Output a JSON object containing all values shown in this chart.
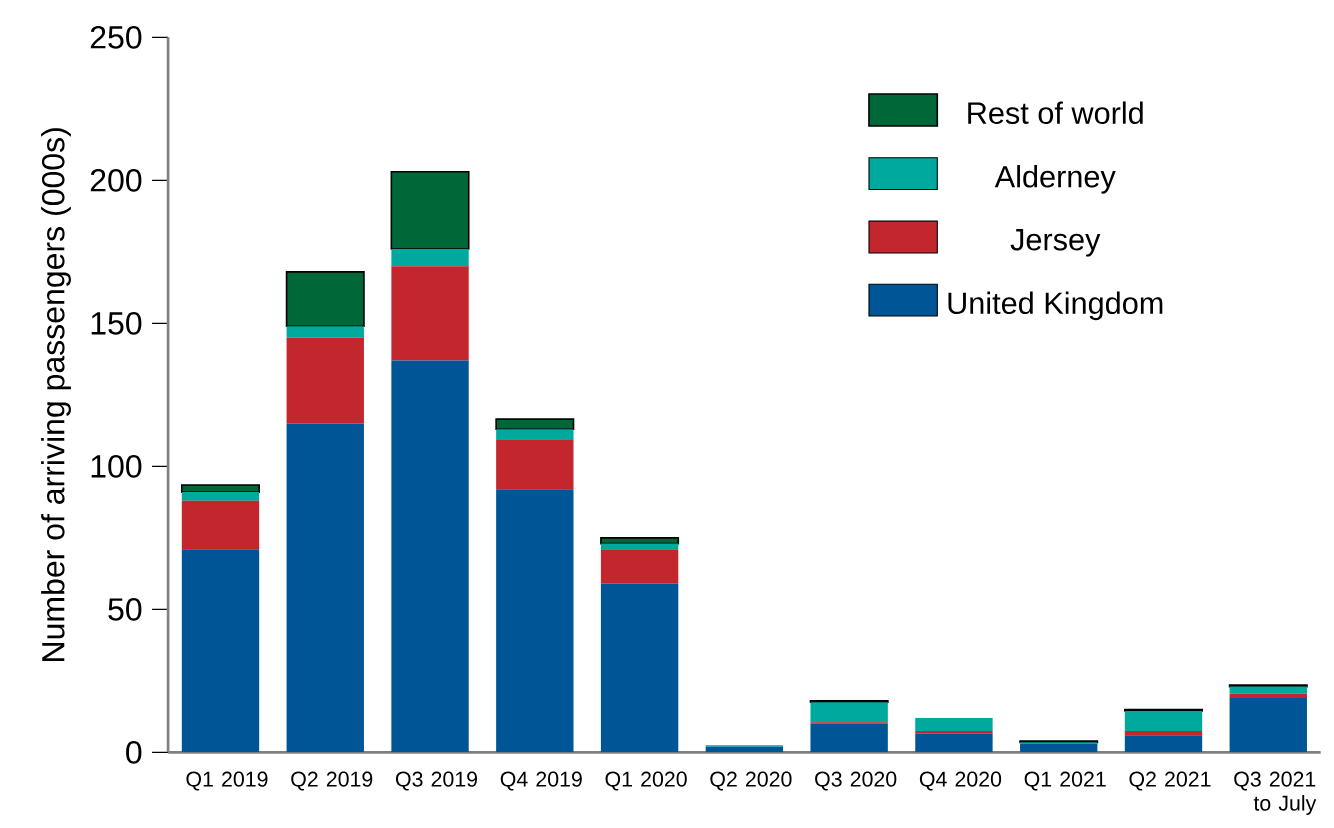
{
  "chart_data": {
    "type": "bar",
    "stacked": true,
    "ylabel": "Number of arriving passengers (000s)",
    "categories": [
      "Q1 2019",
      "Q2 2019",
      "Q3 2019",
      "Q4 2019",
      "Q1 2020",
      "Q2 2020",
      "Q3 2020",
      "Q4 2020",
      "Q1 2021",
      "Q2 2021",
      "Q3 2021 to July"
    ],
    "series": [
      {
        "name": "United Kingdom",
        "color": "#005596",
        "values": [
          71,
          115,
          137,
          92,
          59,
          2,
          10,
          6.5,
          3,
          6,
          19
        ]
      },
      {
        "name": "Jersey",
        "color": "#c4262e",
        "values": [
          17,
          30,
          33,
          17.5,
          12,
          0,
          0.5,
          1,
          0,
          1.5,
          1.5
        ]
      },
      {
        "name": "Alderney",
        "color": "#00a99d",
        "values": [
          3,
          4,
          6,
          3.5,
          2,
          0.5,
          7,
          4.5,
          0.5,
          7,
          2.5
        ]
      },
      {
        "name": "Rest of world",
        "color": "#006838",
        "values": [
          2.5,
          19,
          27,
          3.5,
          2,
          0,
          0.5,
          0,
          0.5,
          0.5,
          0.5
        ]
      }
    ],
    "ylim": [
      0,
      250
    ],
    "yticks": [
      0,
      50,
      100,
      150,
      200,
      250
    ],
    "legend": "top right",
    "grid": false
  }
}
